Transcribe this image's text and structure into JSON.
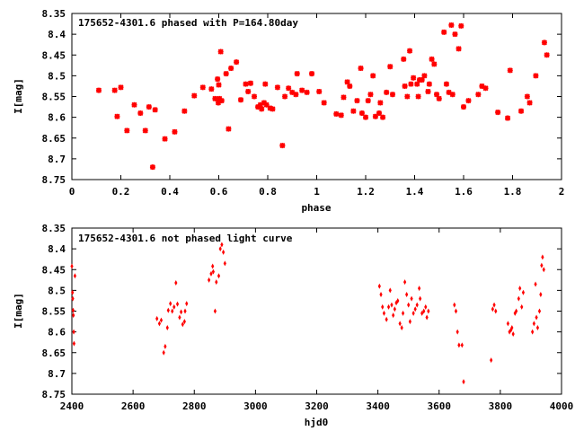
{
  "chart_data": [
    {
      "type": "scatter",
      "title": "175652-4301.6 phased with P=164.80day",
      "xlabel": "phase",
      "ylabel": "I[mag]",
      "xlim": [
        0,
        2
      ],
      "ylim": [
        8.75,
        8.35
      ],
      "y_inverted": true,
      "grid": false,
      "legend": "none",
      "marker_color": "#ff0000",
      "marker": "star",
      "xticks": [
        "0",
        "0.2",
        "0.4",
        "0.6",
        "0.8",
        "1",
        "1.2",
        "1.4",
        "1.6",
        "1.8",
        "2"
      ],
      "xtick_values": [
        0,
        0.2,
        0.4,
        0.6,
        0.8,
        1.0,
        1.2,
        1.4,
        1.6,
        1.8,
        2.0
      ],
      "yticks": [
        "8.35",
        "8.4",
        "8.45",
        "8.5",
        "8.55",
        "8.6",
        "8.65",
        "8.7",
        "8.75"
      ],
      "ytick_values": [
        8.35,
        8.4,
        8.45,
        8.5,
        8.55,
        8.6,
        8.65,
        8.7,
        8.75
      ],
      "points": [
        [
          0.11,
          8.535
        ],
        [
          0.175,
          8.535
        ],
        [
          0.185,
          8.598
        ],
        [
          0.2,
          8.528
        ],
        [
          0.225,
          8.632
        ],
        [
          0.255,
          8.57
        ],
        [
          0.28,
          8.59
        ],
        [
          0.3,
          8.632
        ],
        [
          0.315,
          8.575
        ],
        [
          0.33,
          8.72
        ],
        [
          0.34,
          8.582
        ],
        [
          0.38,
          8.652
        ],
        [
          0.42,
          8.635
        ],
        [
          0.46,
          8.585
        ],
        [
          0.5,
          8.548
        ],
        [
          0.535,
          8.528
        ],
        [
          0.57,
          8.532
        ],
        [
          0.585,
          8.555
        ],
        [
          0.595,
          8.508
        ],
        [
          0.598,
          8.565
        ],
        [
          0.6,
          8.522
        ],
        [
          0.603,
          8.555
        ],
        [
          0.608,
          8.442
        ],
        [
          0.612,
          8.56
        ],
        [
          0.63,
          8.495
        ],
        [
          0.64,
          8.628
        ],
        [
          0.65,
          8.482
        ],
        [
          0.672,
          8.467
        ],
        [
          0.69,
          8.558
        ],
        [
          0.71,
          8.52
        ],
        [
          0.72,
          8.538
        ],
        [
          0.73,
          8.518
        ],
        [
          0.745,
          8.55
        ],
        [
          0.76,
          8.575
        ],
        [
          0.77,
          8.57
        ],
        [
          0.775,
          8.58
        ],
        [
          0.785,
          8.565
        ],
        [
          0.79,
          8.52
        ],
        [
          0.795,
          8.57
        ],
        [
          0.81,
          8.578
        ],
        [
          0.82,
          8.58
        ],
        [
          0.84,
          8.528
        ],
        [
          0.86,
          8.668
        ],
        [
          0.87,
          8.55
        ],
        [
          0.885,
          8.53
        ],
        [
          0.9,
          8.54
        ],
        [
          0.915,
          8.545
        ],
        [
          0.92,
          8.495
        ],
        [
          0.94,
          8.535
        ],
        [
          0.96,
          8.54
        ],
        [
          0.98,
          8.495
        ],
        [
          1.01,
          8.538
        ],
        [
          1.03,
          8.565
        ],
        [
          1.08,
          8.592
        ],
        [
          1.1,
          8.595
        ],
        [
          1.11,
          8.552
        ],
        [
          1.125,
          8.515
        ],
        [
          1.135,
          8.525
        ],
        [
          1.15,
          8.585
        ],
        [
          1.165,
          8.56
        ],
        [
          1.18,
          8.482
        ],
        [
          1.185,
          8.59
        ],
        [
          1.2,
          8.6
        ],
        [
          1.21,
          8.56
        ],
        [
          1.22,
          8.545
        ],
        [
          1.23,
          8.5
        ],
        [
          1.24,
          8.598
        ],
        [
          1.255,
          8.59
        ],
        [
          1.26,
          8.565
        ],
        [
          1.27,
          8.6
        ],
        [
          1.285,
          8.54
        ],
        [
          1.3,
          8.478
        ],
        [
          1.31,
          8.545
        ],
        [
          1.355,
          8.46
        ],
        [
          1.36,
          8.525
        ],
        [
          1.37,
          8.55
        ],
        [
          1.38,
          8.44
        ],
        [
          1.385,
          8.52
        ],
        [
          1.395,
          8.505
        ],
        [
          1.41,
          8.52
        ],
        [
          1.415,
          8.55
        ],
        [
          1.42,
          8.51
        ],
        [
          1.43,
          8.51
        ],
        [
          1.44,
          8.5
        ],
        [
          1.455,
          8.538
        ],
        [
          1.46,
          8.52
        ],
        [
          1.47,
          8.46
        ],
        [
          1.48,
          8.472
        ],
        [
          1.49,
          8.545
        ],
        [
          1.5,
          8.555
        ],
        [
          1.52,
          8.395
        ],
        [
          1.53,
          8.52
        ],
        [
          1.54,
          8.54
        ],
        [
          1.55,
          8.378
        ],
        [
          1.555,
          8.545
        ],
        [
          1.565,
          8.4
        ],
        [
          1.58,
          8.435
        ],
        [
          1.59,
          8.38
        ],
        [
          1.6,
          8.575
        ],
        [
          1.62,
          8.56
        ],
        [
          1.66,
          8.545
        ],
        [
          1.675,
          8.525
        ],
        [
          1.69,
          8.53
        ],
        [
          1.74,
          8.588
        ],
        [
          1.78,
          8.602
        ],
        [
          1.79,
          8.487
        ],
        [
          1.835,
          8.585
        ],
        [
          1.86,
          8.55
        ],
        [
          1.87,
          8.565
        ],
        [
          1.895,
          8.5
        ],
        [
          1.93,
          8.42
        ],
        [
          1.94,
          8.45
        ]
      ]
    },
    {
      "type": "scatter",
      "title": "175652-4301.6 not phased light curve",
      "xlabel": "hjd0",
      "ylabel": "I[mag]",
      "xlim": [
        2400,
        4000
      ],
      "ylim": [
        8.75,
        8.35
      ],
      "y_inverted": true,
      "grid": false,
      "legend": "none",
      "marker_color": "#ff0000",
      "marker": "diamond",
      "xticks": [
        "2400",
        "2600",
        "2800",
        "3000",
        "3200",
        "3400",
        "3600",
        "3800",
        "4000"
      ],
      "xtick_values": [
        2400,
        2600,
        2800,
        3000,
        3200,
        3400,
        3600,
        3800,
        4000
      ],
      "yticks": [
        "8.35",
        "8.4",
        "8.45",
        "8.5",
        "8.55",
        "8.6",
        "8.65",
        "8.7",
        "8.75"
      ],
      "ytick_values": [
        8.35,
        8.4,
        8.45,
        8.5,
        8.55,
        8.6,
        8.65,
        8.7,
        8.75
      ],
      "points": [
        [
          2400,
          8.442
        ],
        [
          2402,
          8.505
        ],
        [
          2403,
          8.52
        ],
        [
          2404,
          8.548
        ],
        [
          2405,
          8.56
        ],
        [
          2406,
          8.6
        ],
        [
          2407,
          8.628
        ],
        [
          2410,
          8.465
        ],
        [
          2678,
          8.568
        ],
        [
          2686,
          8.58
        ],
        [
          2692,
          8.572
        ],
        [
          2700,
          8.65
        ],
        [
          2705,
          8.635
        ],
        [
          2712,
          8.59
        ],
        [
          2715,
          8.548
        ],
        [
          2722,
          8.532
        ],
        [
          2728,
          8.55
        ],
        [
          2734,
          8.54
        ],
        [
          2740,
          8.482
        ],
        [
          2745,
          8.533
        ],
        [
          2752,
          8.565
        ],
        [
          2757,
          8.552
        ],
        [
          2762,
          8.582
        ],
        [
          2768,
          8.575
        ],
        [
          2770,
          8.55
        ],
        [
          2775,
          8.532
        ],
        [
          2848,
          8.475
        ],
        [
          2855,
          8.46
        ],
        [
          2860,
          8.442
        ],
        [
          2862,
          8.455
        ],
        [
          2868,
          8.55
        ],
        [
          2872,
          8.48
        ],
        [
          2880,
          8.465
        ],
        [
          2885,
          8.4
        ],
        [
          2890,
          8.39
        ],
        [
          2895,
          8.408
        ],
        [
          2900,
          8.435
        ],
        [
          3405,
          8.49
        ],
        [
          3410,
          8.51
        ],
        [
          3415,
          8.54
        ],
        [
          3420,
          8.555
        ],
        [
          3428,
          8.57
        ],
        [
          3435,
          8.54
        ],
        [
          3440,
          8.5
        ],
        [
          3445,
          8.535
        ],
        [
          3450,
          8.56
        ],
        [
          3455,
          8.545
        ],
        [
          3460,
          8.53
        ],
        [
          3465,
          8.525
        ],
        [
          3472,
          8.58
        ],
        [
          3478,
          8.59
        ],
        [
          3482,
          8.555
        ],
        [
          3488,
          8.48
        ],
        [
          3494,
          8.51
        ],
        [
          3500,
          8.535
        ],
        [
          3505,
          8.575
        ],
        [
          3510,
          8.52
        ],
        [
          3516,
          8.555
        ],
        [
          3522,
          8.545
        ],
        [
          3528,
          8.535
        ],
        [
          3535,
          8.495
        ],
        [
          3538,
          8.52
        ],
        [
          3544,
          8.555
        ],
        [
          3550,
          8.55
        ],
        [
          3556,
          8.54
        ],
        [
          3560,
          8.565
        ],
        [
          3565,
          8.55
        ],
        [
          3650,
          8.535
        ],
        [
          3655,
          8.55
        ],
        [
          3660,
          8.6
        ],
        [
          3665,
          8.632
        ],
        [
          3675,
          8.632
        ],
        [
          3680,
          8.72
        ],
        [
          3770,
          8.668
        ],
        [
          3775,
          8.545
        ],
        [
          3780,
          8.535
        ],
        [
          3785,
          8.55
        ],
        [
          3825,
          8.58
        ],
        [
          3830,
          8.6
        ],
        [
          3835,
          8.595
        ],
        [
          3838,
          8.59
        ],
        [
          3842,
          8.605
        ],
        [
          3848,
          8.555
        ],
        [
          3852,
          8.55
        ],
        [
          3860,
          8.52
        ],
        [
          3864,
          8.495
        ],
        [
          3870,
          8.54
        ],
        [
          3875,
          8.505
        ],
        [
          3905,
          8.6
        ],
        [
          3910,
          8.58
        ],
        [
          3915,
          8.485
        ],
        [
          3918,
          8.565
        ],
        [
          3922,
          8.59
        ],
        [
          3928,
          8.55
        ],
        [
          3932,
          8.51
        ],
        [
          3935,
          8.44
        ],
        [
          3938,
          8.42
        ],
        [
          3942,
          8.45
        ]
      ]
    }
  ]
}
